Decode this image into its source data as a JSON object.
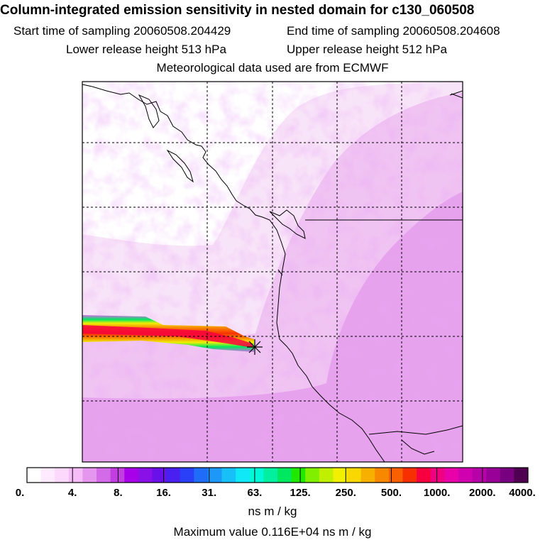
{
  "header": {
    "title": "Column-integrated emission sensitivity in nested domain for c130_060508",
    "start_label": "Start time of sampling",
    "start_value": "20060508.204429",
    "end_label": "End time of sampling",
    "end_value": "20060508.204608",
    "lower_label": "Lower release height",
    "lower_value": "513 hPa",
    "upper_label": "Upper release height",
    "upper_value": "512 hPa",
    "met_line": "Meteorological data used are from ECMWF"
  },
  "map": {
    "release_marker": "star-icon",
    "colors": {
      "background_field": "#f6dcf7",
      "coastline": "#000000",
      "grid": "#000000"
    }
  },
  "colorbar": {
    "tick_labels": [
      "0.",
      "4.",
      "8.",
      "16.",
      "31.",
      "63.",
      "125.",
      "250.",
      "500.",
      "1000.",
      "2000.",
      "4000."
    ],
    "colors": [
      "#ffffff",
      "#ffeaff",
      "#fcd8fc",
      "#f6bcf8",
      "#e596ef",
      "#d36ae8",
      "#c23ee0",
      "#a800e8",
      "#8a10e8",
      "#6a10e8",
      "#4a20f0",
      "#2a40f8",
      "#1e6cf8",
      "#1e98f8",
      "#18c0f8",
      "#10e8f8",
      "#00f8d8",
      "#00f0a0",
      "#00e860",
      "#20e800",
      "#80f000",
      "#c0f000",
      "#f0f000",
      "#f8d800",
      "#f8b000",
      "#f88800",
      "#f86000",
      "#f83000",
      "#f80040",
      "#f00080",
      "#e800a8",
      "#d000b0",
      "#b800a8",
      "#980098",
      "#780080",
      "#500050"
    ],
    "units": "ns m / kg"
  },
  "footer": {
    "max_label": "Maximum value",
    "max_value": "0.116E+04 ns m / kg"
  }
}
